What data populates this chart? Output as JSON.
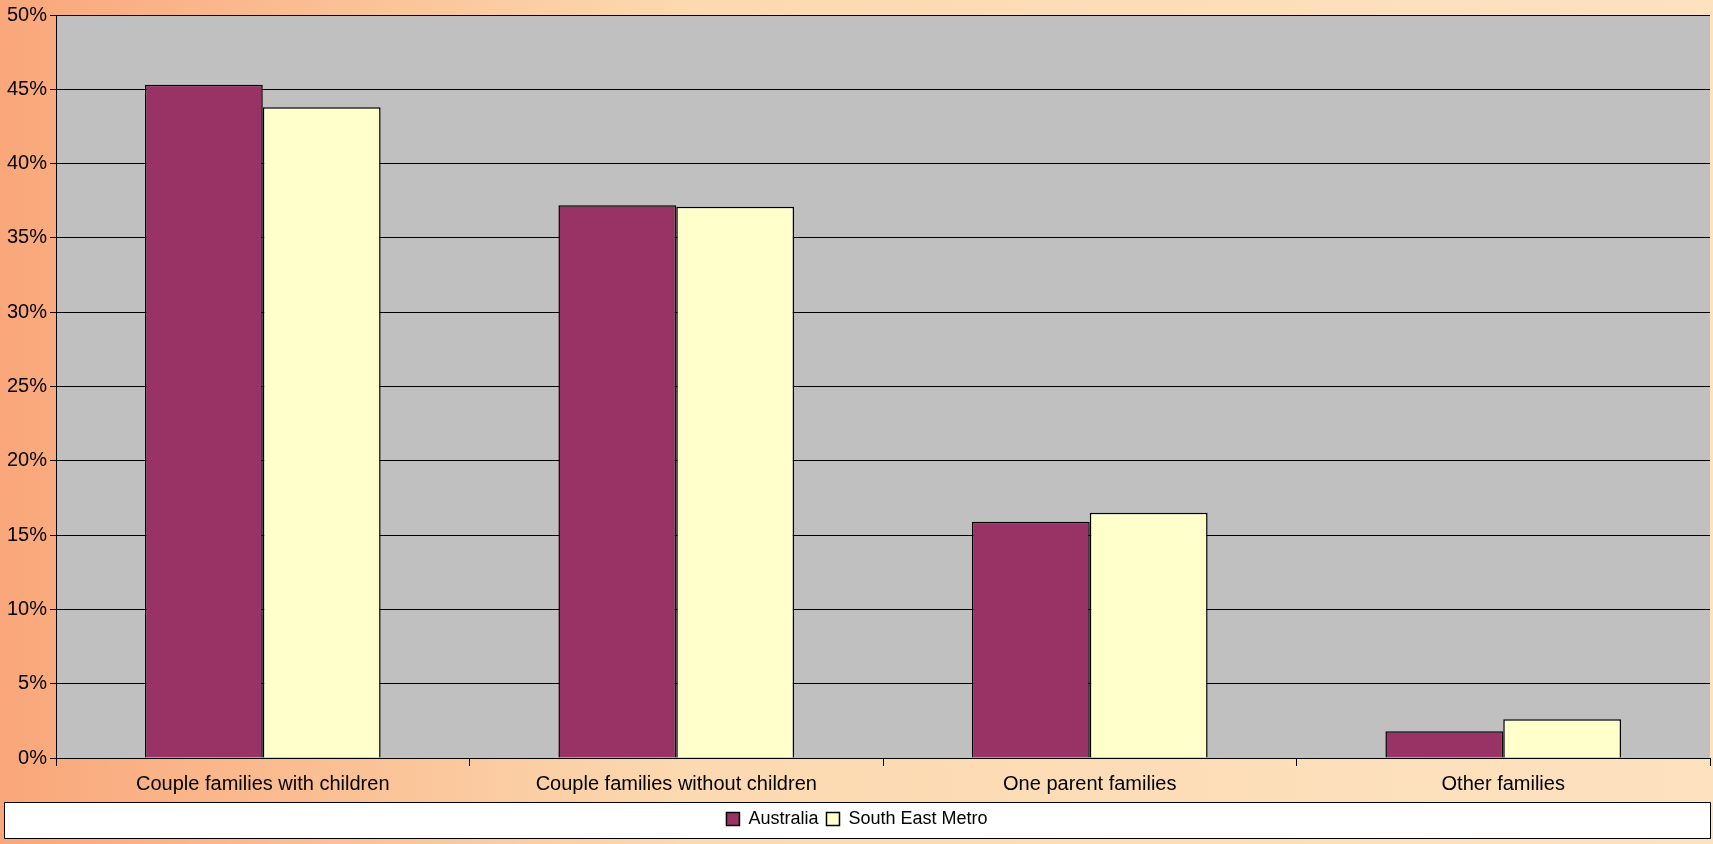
{
  "chart_data": {
    "type": "bar",
    "categories": [
      "Couple families with children",
      "Couple families without children",
      "One parent families",
      "Other families"
    ],
    "series": [
      {
        "name": "Australia",
        "color": "#993366",
        "values": [
          45.3,
          37.2,
          15.9,
          1.8
        ]
      },
      {
        "name": "South East Metro",
        "color": "#ffffcc",
        "values": [
          43.8,
          37.1,
          16.5,
          2.6
        ]
      }
    ],
    "ylim": [
      0,
      50
    ],
    "yticks": [
      {
        "value": 0,
        "label": "0%"
      },
      {
        "value": 5,
        "label": "5%"
      },
      {
        "value": 10,
        "label": "10%"
      },
      {
        "value": 15,
        "label": "15%"
      },
      {
        "value": 20,
        "label": "20%"
      },
      {
        "value": 25,
        "label": "25%"
      },
      {
        "value": 30,
        "label": "30%"
      },
      {
        "value": 35,
        "label": "35%"
      },
      {
        "value": 40,
        "label": "40%"
      },
      {
        "value": 45,
        "label": "45%"
      },
      {
        "value": 50,
        "label": "50%"
      }
    ],
    "grid": "y",
    "legend": "bottom"
  }
}
